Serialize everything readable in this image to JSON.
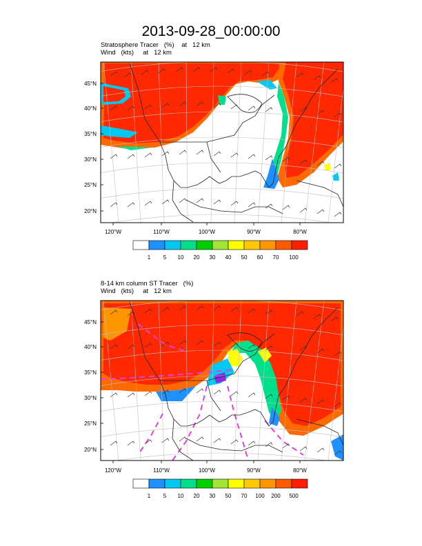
{
  "title": "2013-09-28_00:00:00",
  "panels": [
    {
      "title_line1": "Stratosphere Tracer   (%)    at   12 km",
      "title_line2": "Wind   (kts)     at   12 km",
      "lat_labels": [
        "45°N",
        "40°N",
        "35°N",
        "30°N",
        "25°N",
        "20°N"
      ],
      "lon_labels": [
        "120°W",
        "110°W",
        "100°W",
        "90°W",
        "80°W"
      ],
      "colorbar_labels": [
        "1",
        "5",
        "10",
        "20",
        "30",
        "40",
        "50",
        "60",
        "70",
        "100"
      ],
      "colorbar_colors": [
        "#ffffff",
        "#1e90ff",
        "#00c8f0",
        "#00e08c",
        "#00d000",
        "#a0e632",
        "#ffff00",
        "#ffc800",
        "#ff9600",
        "#ff5a00",
        "#ff1e00"
      ]
    },
    {
      "title_line1": "8-14 km column ST Tracer   (%)",
      "title_line2": "Wind   (kts)     at   12 km",
      "lat_labels": [
        "45°N",
        "40°N",
        "35°N",
        "30°N",
        "25°N",
        "20°N"
      ],
      "lon_labels": [
        "120°W",
        "110°W",
        "100°W",
        "90°W",
        "80°W"
      ],
      "colorbar_labels": [
        "1",
        "5",
        "10",
        "20",
        "30",
        "50",
        "70",
        "100",
        "200",
        "500"
      ],
      "colorbar_colors": [
        "#ffffff",
        "#1e90ff",
        "#00c8f0",
        "#00e08c",
        "#00d000",
        "#a0e632",
        "#ffff00",
        "#ffc800",
        "#ff9600",
        "#ff5a00",
        "#ff1e00"
      ]
    }
  ]
}
